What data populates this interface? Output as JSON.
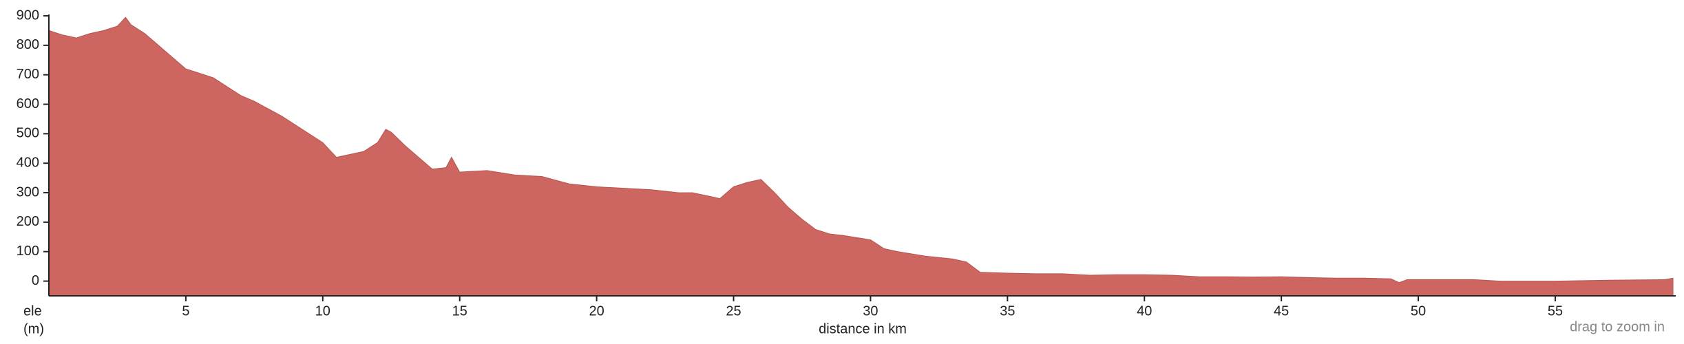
{
  "chart_data": {
    "type": "area",
    "x_label": "distance in km",
    "y_label": [
      "ele",
      "(m)"
    ],
    "annotation": "drag to zoom in",
    "color": "#cd6560",
    "xlim": [
      0,
      59.4
    ],
    "ylim": [
      -50,
      900
    ],
    "xticks": [
      5,
      10,
      15,
      20,
      25,
      30,
      35,
      40,
      45,
      50,
      55
    ],
    "yticks": [
      0,
      100,
      200,
      300,
      400,
      500,
      600,
      700,
      800,
      900
    ],
    "x": [
      0,
      0.5,
      1,
      1.5,
      2,
      2.5,
      2.8,
      3,
      3.5,
      4,
      4.5,
      5,
      5.5,
      6,
      6.5,
      7,
      7.5,
      8,
      8.5,
      9,
      9.5,
      10,
      10.5,
      11,
      11.5,
      12,
      12.3,
      12.5,
      13,
      13.5,
      14,
      14.5,
      14.7,
      15,
      16,
      17,
      18,
      19,
      20,
      21,
      22,
      23,
      23.5,
      24,
      24.5,
      25,
      25.5,
      26,
      26.5,
      27,
      27.5,
      28,
      28.5,
      29,
      30,
      30.5,
      31,
      32,
      33,
      33.5,
      34,
      35,
      36,
      37,
      38,
      39,
      40,
      41,
      42,
      43,
      44,
      45,
      46,
      47,
      48,
      49,
      49.3,
      49.6,
      50,
      52,
      53,
      55,
      57,
      59,
      59.3
    ],
    "values": [
      850,
      835,
      825,
      840,
      850,
      865,
      895,
      870,
      840,
      800,
      760,
      720,
      705,
      690,
      660,
      630,
      610,
      585,
      560,
      530,
      500,
      470,
      420,
      430,
      440,
      470,
      515,
      505,
      460,
      420,
      380,
      385,
      420,
      370,
      375,
      360,
      355,
      330,
      320,
      315,
      310,
      300,
      300,
      290,
      280,
      320,
      335,
      345,
      300,
      250,
      210,
      175,
      160,
      155,
      140,
      110,
      100,
      85,
      75,
      65,
      30,
      27,
      25,
      25,
      20,
      22,
      22,
      20,
      15,
      15,
      14,
      15,
      12,
      10,
      10,
      8,
      -5,
      5,
      5,
      5,
      0,
      0,
      3,
      5,
      10
    ]
  }
}
